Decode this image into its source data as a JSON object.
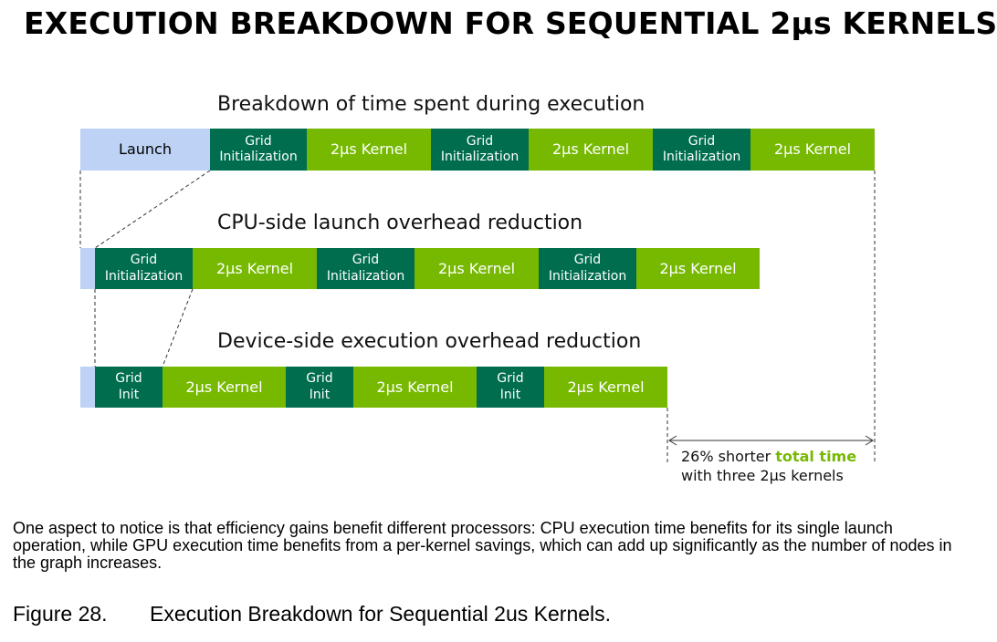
{
  "title": "EXECUTION BREAKDOWN FOR SEQUENTIAL 2μs KERNELS",
  "rows": [
    {
      "heading": "Breakdown of time spent during execution",
      "launch_label": "Launch",
      "grid_label_line1": "Grid",
      "grid_label_line2": "Initialization",
      "kernel_label": "2μs Kernel"
    },
    {
      "heading": "CPU-side launch overhead reduction",
      "grid_label_line1": "Grid",
      "grid_label_line2": "Initialization",
      "kernel_label": "2μs Kernel"
    },
    {
      "heading": "Device-side execution overhead reduction",
      "grid_label_line1": "Grid",
      "grid_label_line2": "Init",
      "kernel_label": "2μs Kernel"
    }
  ],
  "note": {
    "line1_prefix": "26% shorter ",
    "line1_highlight": "total time",
    "line2": "with three 2μs kernels"
  },
  "paragraph": "One aspect to notice is that efficiency gains benefit different processors: CPU execution time benefits for its single launch operation, while GPU execution time benefits from a per-kernel savings, which can add up significantly as the number of nodes in the graph increases.",
  "caption": {
    "number": "Figure 28.",
    "text": "Execution Breakdown for Sequential 2us Kernels."
  },
  "colors": {
    "launch": "#bdd2f4",
    "grid_init": "#006d4f",
    "kernel": "#76b900"
  }
}
